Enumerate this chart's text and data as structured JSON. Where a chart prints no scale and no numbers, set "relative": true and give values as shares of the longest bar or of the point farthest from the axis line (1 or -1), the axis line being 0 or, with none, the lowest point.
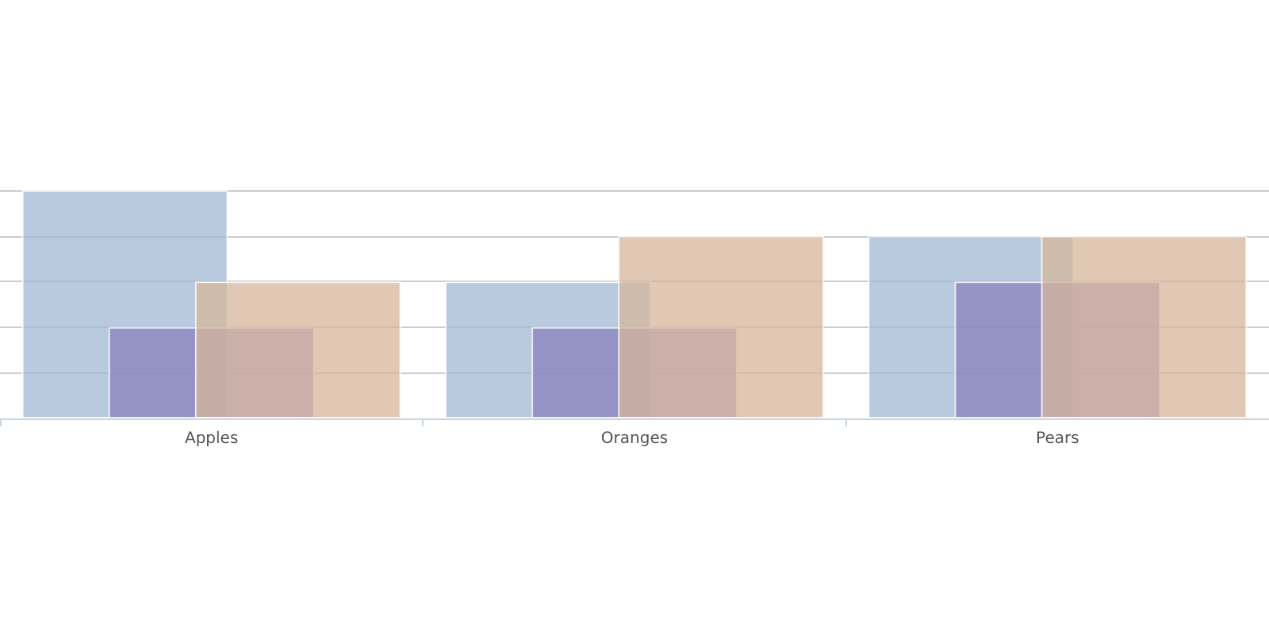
{
  "chart_data": {
    "type": "bar",
    "relative": true,
    "grid": "y",
    "categories": [
      "Apples",
      "Oranges",
      "Pears"
    ],
    "series": [
      {
        "color": "#a2b8d3",
        "values": [
          1,
          0.6,
          0.8
        ]
      },
      {
        "color": "#8a7fbd",
        "values": [
          0.4,
          0.4,
          0.6
        ]
      },
      {
        "color": "#d5b59b",
        "values": [
          0.6,
          0.8,
          0.8
        ]
      }
    ]
  }
}
